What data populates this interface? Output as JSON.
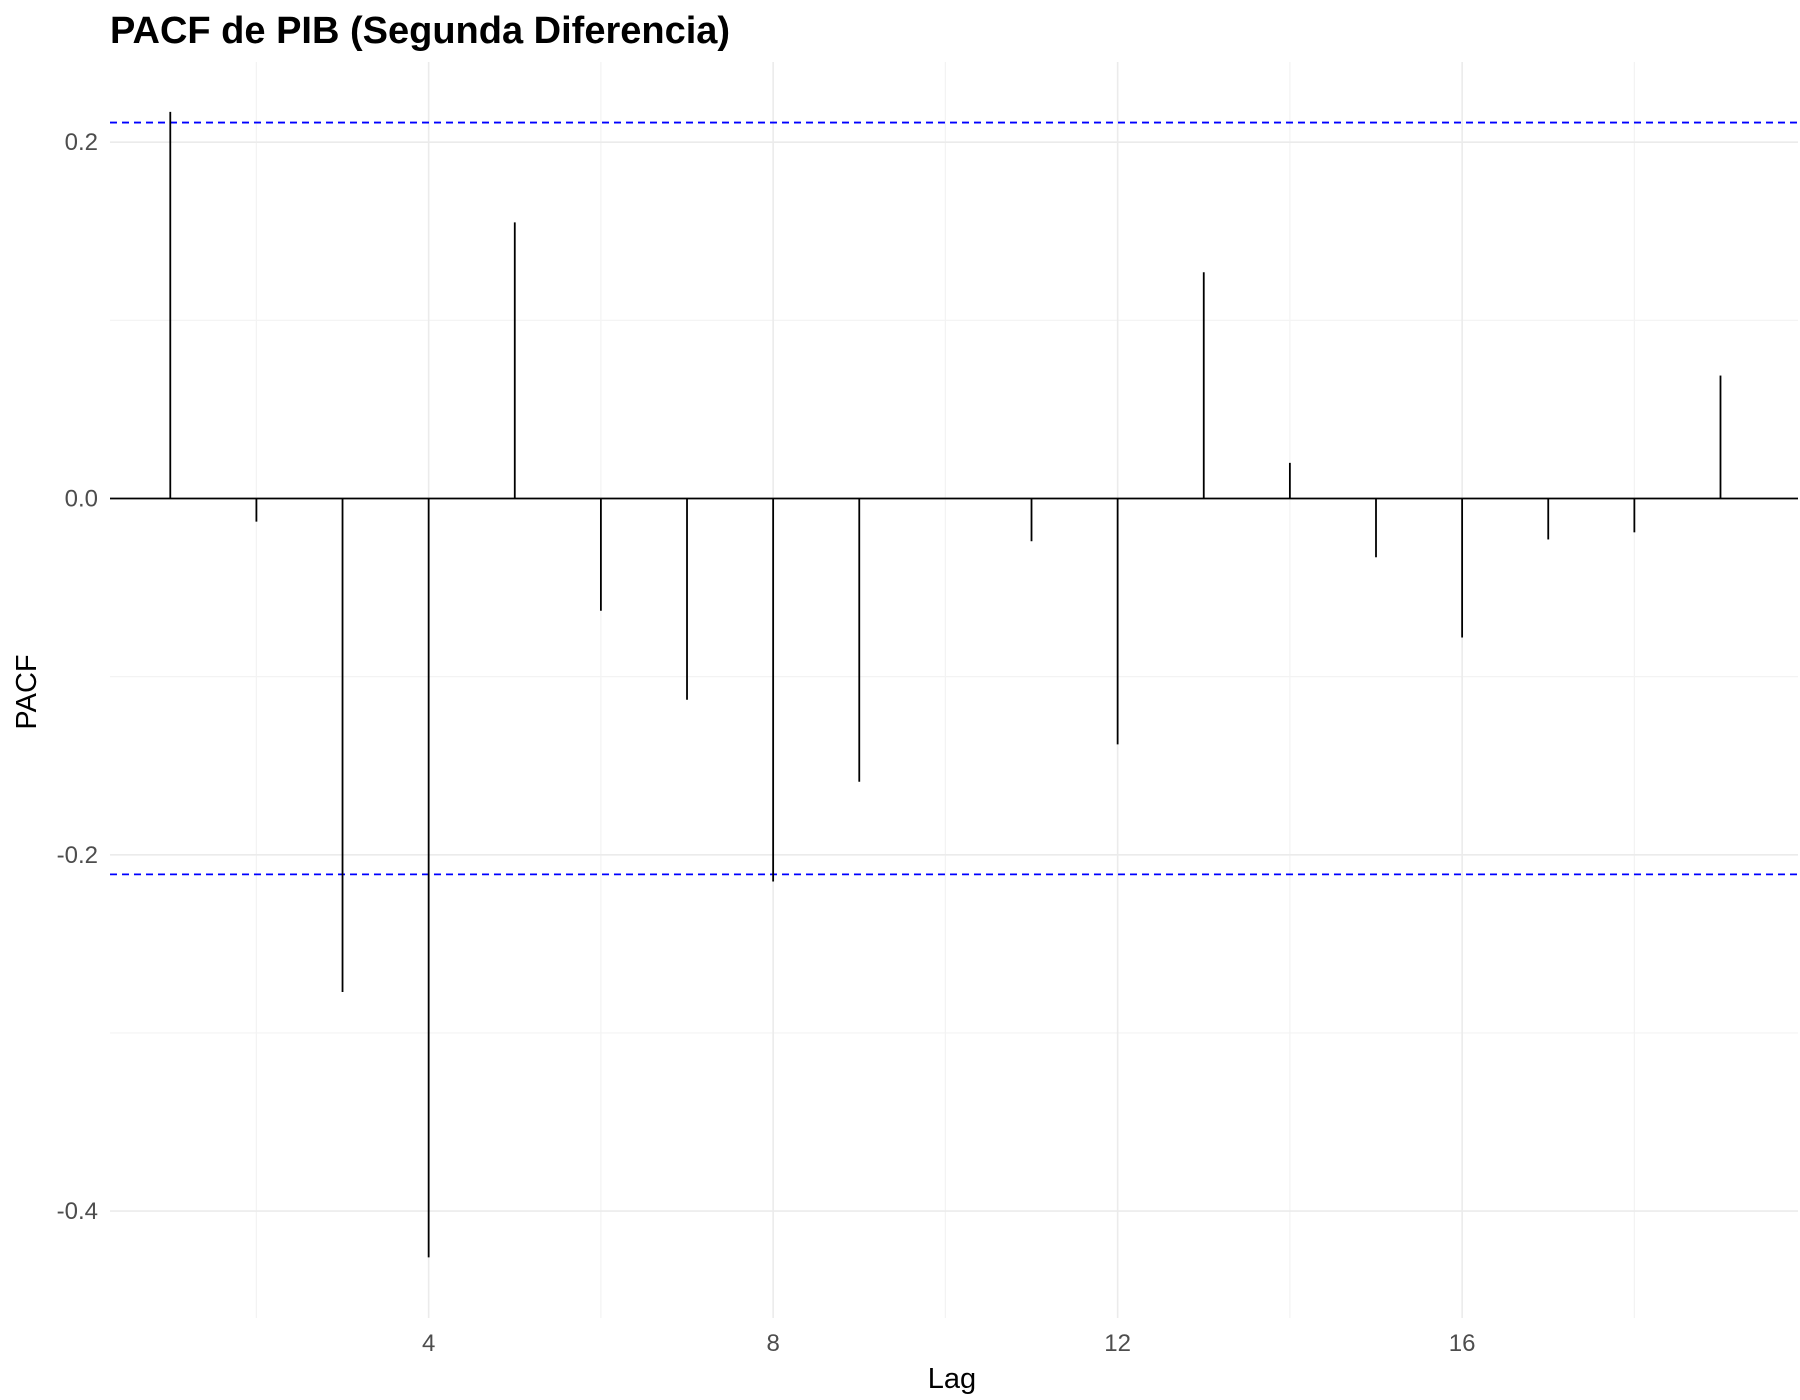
{
  "chart_data": {
    "type": "bar",
    "title": "PACF de PIB (Segunda Diferencia)",
    "xlabel": "Lag",
    "ylabel": "PACF",
    "x": [
      1,
      2,
      3,
      4,
      5,
      6,
      7,
      8,
      9,
      10,
      11,
      12,
      13,
      14,
      15,
      16,
      17,
      18,
      19
    ],
    "values": [
      0.217,
      -0.013,
      -0.277,
      -0.426,
      0.155,
      -0.063,
      -0.113,
      -0.215,
      -0.159,
      0.0,
      -0.024,
      -0.138,
      0.127,
      0.02,
      -0.033,
      -0.078,
      -0.023,
      -0.019,
      0.069
    ],
    "confidence_interval": [
      -0.211,
      0.211
    ],
    "xlim": [
      0.3,
      19.9
    ],
    "ylim": [
      -0.46,
      0.245
    ],
    "x_ticks": [
      4,
      8,
      12,
      16
    ],
    "x_tick_labels": [
      "4",
      "8",
      "12",
      "16"
    ],
    "y_ticks": [
      -0.4,
      -0.2,
      0.0,
      0.2
    ],
    "y_tick_labels": [
      "-0.4",
      "-0.2",
      "0.0",
      "0.2"
    ],
    "grid": true,
    "ci_color": "#0000ff",
    "bar_color": "#000000",
    "grid_color": "#ebebeb"
  }
}
